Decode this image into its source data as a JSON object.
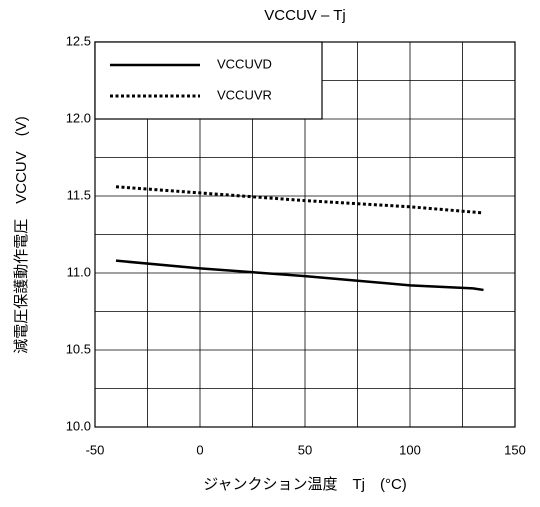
{
  "chart_data": {
    "type": "line",
    "title": "VCCUV – Tj",
    "x_label": "ジャンクション温度　Tj　(°C)",
    "y_label": "減電圧保護動作電圧　VCCUV　(V)",
    "xlim": [
      -50,
      150
    ],
    "xticks": [
      -50,
      0,
      50,
      100,
      150
    ],
    "x_minor_grid": [
      -25,
      25,
      75,
      125
    ],
    "ylim": [
      10.0,
      12.5
    ],
    "yticks": [
      {
        "value": 10.0,
        "label": "10.0"
      },
      10.5,
      {
        "value": 11.0,
        "label": "11.0"
      },
      11.5,
      {
        "value": 12.0,
        "label": "12.0"
      },
      12.5
    ],
    "y_minor_grid": [
      10.25,
      10.75,
      11.25,
      11.75,
      12.25
    ],
    "grid": true,
    "legend": "upper left",
    "series": [
      {
        "name": "VCCUVD",
        "color": "#000000",
        "style": "solid",
        "x": [
          -40,
          0,
          50,
          100,
          130,
          135
        ],
        "values": [
          11.08,
          11.03,
          10.98,
          10.92,
          10.9,
          10.89
        ]
      },
      {
        "name": "VCCUVR",
        "color": "#000000",
        "style": "dotted",
        "x": [
          -40,
          0,
          50,
          100,
          135
        ],
        "values": [
          11.56,
          11.52,
          11.47,
          11.43,
          11.39
        ]
      }
    ]
  }
}
